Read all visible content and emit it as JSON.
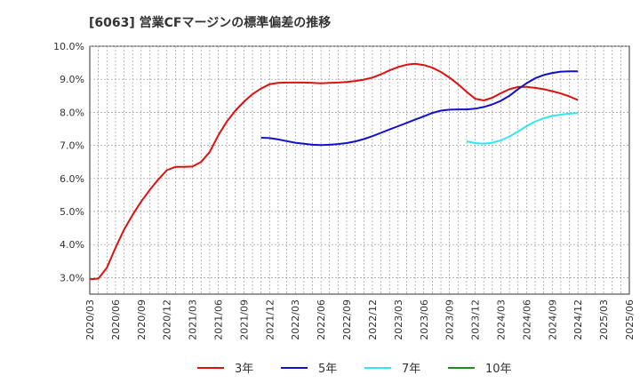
{
  "chart_data": {
    "type": "line",
    "title": "[6063]  営業CFマージンの標準偏差の推移",
    "xlabel": "",
    "ylabel": "",
    "ylim": [
      2.5,
      10.0
    ],
    "yticks": [
      "3.0%",
      "4.0%",
      "5.0%",
      "6.0%",
      "7.0%",
      "8.0%",
      "9.0%",
      "10.0%"
    ],
    "ytick_values": [
      3,
      4,
      5,
      6,
      7,
      8,
      9,
      10
    ],
    "xticks": [
      "2020/03",
      "2020/06",
      "2020/09",
      "2020/12",
      "2021/03",
      "2021/06",
      "2021/09",
      "2021/12",
      "2022/03",
      "2022/06",
      "2022/09",
      "2022/12",
      "2023/03",
      "2023/06",
      "2023/09",
      "2023/12",
      "2024/03",
      "2024/06",
      "2024/09",
      "2024/12",
      "2025/03",
      "2025/06"
    ],
    "x_range": [
      "2020/03",
      "2025/06"
    ],
    "grid": true,
    "legend_position": "bottom",
    "series": [
      {
        "name": "3年",
        "color": "#dd1111",
        "points": [
          [
            "2020/03",
            2.95
          ],
          [
            "2020/04",
            2.97
          ],
          [
            "2020/05",
            3.3
          ],
          [
            "2020/06",
            3.9
          ],
          [
            "2020/07",
            4.45
          ],
          [
            "2020/08",
            4.9
          ],
          [
            "2020/09",
            5.3
          ],
          [
            "2020/10",
            5.65
          ],
          [
            "2020/11",
            5.97
          ],
          [
            "2020/12",
            6.25
          ],
          [
            "2021/01",
            6.35
          ],
          [
            "2021/02",
            6.35
          ],
          [
            "2021/03",
            6.36
          ],
          [
            "2021/04",
            6.5
          ],
          [
            "2021/05",
            6.8
          ],
          [
            "2021/06",
            7.3
          ],
          [
            "2021/07",
            7.72
          ],
          [
            "2021/08",
            8.05
          ],
          [
            "2021/09",
            8.32
          ],
          [
            "2021/10",
            8.55
          ],
          [
            "2021/11",
            8.72
          ],
          [
            "2021/12",
            8.85
          ],
          [
            "2022/01",
            8.89
          ],
          [
            "2022/02",
            8.9
          ],
          [
            "2022/03",
            8.9
          ],
          [
            "2022/04",
            8.9
          ],
          [
            "2022/05",
            8.89
          ],
          [
            "2022/06",
            8.88
          ],
          [
            "2022/07",
            8.89
          ],
          [
            "2022/08",
            8.9
          ],
          [
            "2022/09",
            8.92
          ],
          [
            "2022/10",
            8.95
          ],
          [
            "2022/11",
            8.99
          ],
          [
            "2022/12",
            9.05
          ],
          [
            "2023/01",
            9.15
          ],
          [
            "2023/02",
            9.27
          ],
          [
            "2023/03",
            9.37
          ],
          [
            "2023/04",
            9.44
          ],
          [
            "2023/05",
            9.47
          ],
          [
            "2023/06",
            9.43
          ],
          [
            "2023/07",
            9.35
          ],
          [
            "2023/08",
            9.22
          ],
          [
            "2023/09",
            9.05
          ],
          [
            "2023/10",
            8.85
          ],
          [
            "2023/11",
            8.62
          ],
          [
            "2023/12",
            8.41
          ],
          [
            "2024/01",
            8.36
          ],
          [
            "2024/02",
            8.44
          ],
          [
            "2024/03",
            8.58
          ],
          [
            "2024/04",
            8.7
          ],
          [
            "2024/05",
            8.77
          ],
          [
            "2024/06",
            8.77
          ],
          [
            "2024/07",
            8.74
          ],
          [
            "2024/08",
            8.7
          ],
          [
            "2024/09",
            8.64
          ],
          [
            "2024/10",
            8.57
          ],
          [
            "2024/11",
            8.48
          ],
          [
            "2024/12",
            8.37
          ]
        ]
      },
      {
        "name": "5年",
        "color": "#1111cc",
        "points": [
          [
            "2021/11",
            7.23
          ],
          [
            "2021/12",
            7.22
          ],
          [
            "2022/01",
            7.18
          ],
          [
            "2022/02",
            7.13
          ],
          [
            "2022/03",
            7.08
          ],
          [
            "2022/04",
            7.05
          ],
          [
            "2022/05",
            7.02
          ],
          [
            "2022/06",
            7.01
          ],
          [
            "2022/07",
            7.02
          ],
          [
            "2022/08",
            7.04
          ],
          [
            "2022/09",
            7.07
          ],
          [
            "2022/10",
            7.12
          ],
          [
            "2022/11",
            7.19
          ],
          [
            "2022/12",
            7.28
          ],
          [
            "2023/01",
            7.38
          ],
          [
            "2023/02",
            7.48
          ],
          [
            "2023/03",
            7.58
          ],
          [
            "2023/04",
            7.68
          ],
          [
            "2023/05",
            7.78
          ],
          [
            "2023/06",
            7.88
          ],
          [
            "2023/07",
            7.98
          ],
          [
            "2023/08",
            8.05
          ],
          [
            "2023/09",
            8.08
          ],
          [
            "2023/10",
            8.09
          ],
          [
            "2023/11",
            8.09
          ],
          [
            "2023/12",
            8.11
          ],
          [
            "2024/01",
            8.16
          ],
          [
            "2024/02",
            8.24
          ],
          [
            "2024/03",
            8.35
          ],
          [
            "2024/04",
            8.5
          ],
          [
            "2024/05",
            8.7
          ],
          [
            "2024/06",
            8.88
          ],
          [
            "2024/07",
            9.03
          ],
          [
            "2024/08",
            9.13
          ],
          [
            "2024/09",
            9.19
          ],
          [
            "2024/10",
            9.23
          ],
          [
            "2024/11",
            9.24
          ],
          [
            "2024/12",
            9.24
          ]
        ]
      },
      {
        "name": "7年",
        "color": "#33e6f0",
        "points": [
          [
            "2023/11",
            7.12
          ],
          [
            "2023/12",
            7.07
          ],
          [
            "2024/01",
            7.05
          ],
          [
            "2024/02",
            7.08
          ],
          [
            "2024/03",
            7.15
          ],
          [
            "2024/04",
            7.27
          ],
          [
            "2024/05",
            7.42
          ],
          [
            "2024/06",
            7.58
          ],
          [
            "2024/07",
            7.72
          ],
          [
            "2024/08",
            7.82
          ],
          [
            "2024/09",
            7.89
          ],
          [
            "2024/10",
            7.93
          ],
          [
            "2024/11",
            7.96
          ],
          [
            "2024/12",
            7.98
          ]
        ]
      },
      {
        "name": "10年",
        "color": "#228822",
        "points": []
      }
    ]
  }
}
